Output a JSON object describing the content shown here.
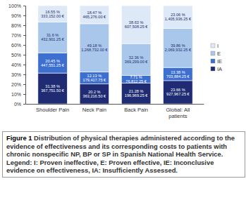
{
  "chart_data": {
    "type": "bar",
    "stacked": true,
    "data_labels": true,
    "legend": "right",
    "categories": [
      "Shoulder Pain",
      "Neck Pain",
      "Back Pain",
      "Global: All patients"
    ],
    "ylim": [
      0,
      100
    ],
    "yticks": [
      {
        "value": 0,
        "label": "0%"
      },
      {
        "value": 10,
        "label": "10%"
      },
      {
        "value": 20,
        "label": "20%"
      },
      {
        "value": 30,
        "label": "30%"
      },
      {
        "value": 40,
        "label": "40%"
      },
      {
        "value": 50,
        "label": "50%"
      },
      {
        "value": 60,
        "label": "60%"
      },
      {
        "value": 70,
        "label": "70%"
      },
      {
        "value": 80,
        "label": "80%"
      },
      {
        "value": 90,
        "label": "90%"
      },
      {
        "value": 100,
        "label": "100%"
      }
    ],
    "series": [
      {
        "name": "IA",
        "color": "#1f2c73",
        "values": [
          31.38,
          20.2,
          21.28,
          23.66
        ],
        "value_labels": [
          "31.38 %",
          "20.2 %",
          "21.28 %",
          "23.66 %"
        ],
        "cost_labels": [
          "367,751.50 €",
          "363,216.50 €",
          "196,969.25 €",
          "927,967.25 €"
        ]
      },
      {
        "name": "IE",
        "color": "#3d6fd1",
        "values": [
          20.45,
          12.13,
          7.71,
          13.38
        ],
        "value_labels": [
          "20.45 %",
          "12.13 %",
          "7.71 %",
          "13.38 %"
        ],
        "cost_labels": [
          "447,551.25 €",
          "179,417.75 €",
          "76,812.25 €",
          "703,884.25 €"
        ]
      },
      {
        "name": "E",
        "color": "#a9c7ea",
        "values": [
          31.6,
          49.18,
          32.36,
          39.86
        ],
        "value_labels": [
          "31.6 %",
          "49.18 %",
          "32.36 %",
          "39.86 %"
        ],
        "cost_labels": [
          "432,901.25 €",
          "1,268,732.00 €",
          "369,299.00 €",
          "2,069,932.25 €"
        ]
      },
      {
        "name": "I",
        "color": "#dde9f6",
        "values": [
          16.55,
          18.47,
          38.63,
          23.06
        ],
        "value_labels": [
          "16.55 %",
          "18.47 %",
          "38.63 %",
          "23.06 %"
        ],
        "cost_labels": [
          "333,152.00 €",
          "465,276.00 €",
          "607,508.25 €",
          "1,405,936.25 €"
        ]
      }
    ]
  },
  "caption": {
    "label": "Figure 1",
    "text": "Distribution of physical therapies administered according to the evidence of effectiveness and its corresponding costs to patients with chronic nonspecific NP, BP or SP in Spanish National Health Service. Legend: I: Proven ineffective, E: Proven effective, IE: Inconclusive evidence on effectiveness, IA: Insufficiently Assessed."
  }
}
